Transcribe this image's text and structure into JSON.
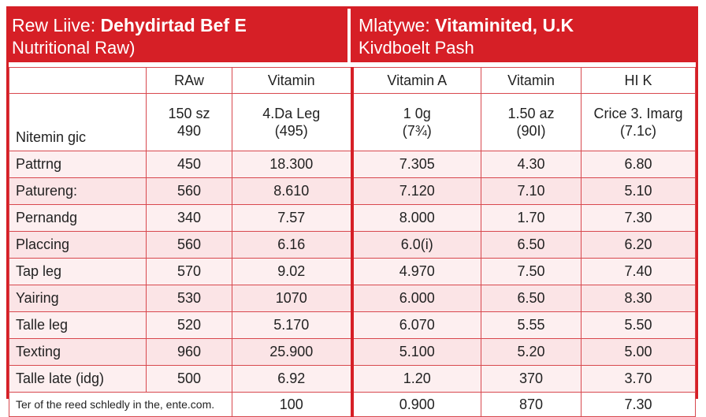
{
  "banner": {
    "left_prefix": "Rew Liive:",
    "left_bold": "Dehydirtad Bef E",
    "left_sub": "Nutritional Raw)",
    "right_prefix": "Mlatywe:",
    "right_bold": "Vitaminited, U.K",
    "right_sub": "Kivdboelt Pash"
  },
  "table": {
    "headers": [
      "",
      "RAw",
      "Vitamin",
      "Vitamin A",
      "Vitamin",
      "HI K"
    ],
    "subheader": {
      "label": "Nitemin gic",
      "cells": [
        [
          "150 sz",
          "490"
        ],
        [
          "4.Da Leg",
          "(495)"
        ],
        [
          "1 0g",
          "(7¾)"
        ],
        [
          "1.50 az",
          "(90I)"
        ],
        [
          "Crice 3. Imarg",
          "(7.1c)"
        ]
      ]
    },
    "rows": [
      {
        "label": "Pattrng",
        "cells": [
          "450",
          "18.300",
          "7.305",
          "4.30",
          "6.80"
        ]
      },
      {
        "label": "Patureng:",
        "cells": [
          "560",
          "8.610",
          "7.120",
          "7.10",
          "5.10"
        ]
      },
      {
        "label": "Pernandg",
        "cells": [
          "340",
          "7.57",
          "8.000",
          "1.70",
          "7.30"
        ]
      },
      {
        "label": "Placcing",
        "cells": [
          "560",
          "6.16",
          "6.0(i)",
          "6.50",
          "6.20"
        ]
      },
      {
        "label": "Tap leg",
        "cells": [
          "570",
          "9.02",
          "4.970",
          "7.50",
          "7.40"
        ]
      },
      {
        "label": "Yairing",
        "cells": [
          "530",
          "1070",
          "6.000",
          "6.50",
          "8.30"
        ]
      },
      {
        "label": "Talle leg",
        "cells": [
          "520",
          "5.170",
          "6.070",
          "5.55",
          "5.50"
        ]
      },
      {
        "label": "Texting",
        "cells": [
          "960",
          "25.900",
          "5.100",
          "5.20",
          "5.00"
        ]
      },
      {
        "label": "Talle late (idg)",
        "cells": [
          "500",
          "6.92",
          "1.20",
          "370",
          "3.70"
        ]
      }
    ],
    "footer": {
      "label": "Ter of the reed schledly in the, ente.com.",
      "cells": [
        "",
        "100",
        "0.900",
        "870",
        "7.30"
      ]
    }
  },
  "colors": {
    "accent": "#d61f26",
    "row_tint": "#fdeff0"
  }
}
